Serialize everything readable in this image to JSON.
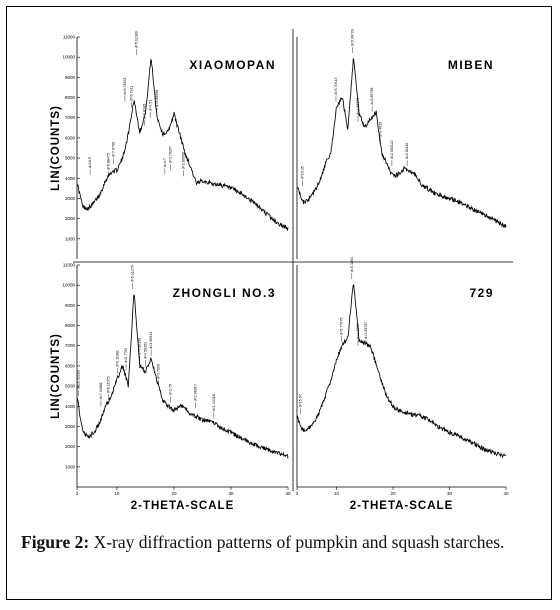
{
  "caption": {
    "label": "Figure 2:",
    "text": "X-ray diffraction patterns of pumpkin and squash starches."
  },
  "chart_data": [
    {
      "type": "line",
      "title": "XIAOMOPAN",
      "ylabel": "LIN(COUNTS)",
      "xlabel": "",
      "xlim": [
        3,
        40
      ],
      "ylim": [
        0,
        11000
      ],
      "yticks": [
        1000,
        2000,
        3000,
        4000,
        5000,
        6000,
        7000,
        8000,
        9000,
        10000,
        11000
      ],
      "xticks": [],
      "x": [
        3,
        4,
        5,
        6,
        7,
        8,
        9,
        10,
        11,
        12,
        13,
        14,
        15,
        16,
        17,
        18,
        19,
        20,
        21,
        22,
        23,
        24,
        25,
        26,
        27,
        28,
        30,
        32,
        34,
        36,
        38,
        40
      ],
      "y": [
        3800,
        2600,
        2500,
        2800,
        3200,
        3900,
        4300,
        4400,
        5000,
        6200,
        7900,
        6300,
        7200,
        10000,
        7100,
        6200,
        6300,
        7200,
        6200,
        5200,
        4500,
        3700,
        3900,
        3800,
        3700,
        3700,
        3500,
        3200,
        2800,
        2300,
        1800,
        1500
      ],
      "peaks": [
        {
          "x": 5.3,
          "y": 4150,
          "label": "d=16.5"
        },
        {
          "x": 8.5,
          "y": 4050,
          "label": "d=9.88475"
        },
        {
          "x": 9.4,
          "y": 4700,
          "label": "d=7.6799"
        },
        {
          "x": 11.4,
          "y": 7800,
          "label": "d=5.78151"
        },
        {
          "x": 12.6,
          "y": 7500,
          "label": "d=5.7311"
        },
        {
          "x": 13.4,
          "y": 10100,
          "label": "d=5.11389"
        },
        {
          "x": 14.8,
          "y": 6600,
          "label": "d=4.8745"
        },
        {
          "x": 15.9,
          "y": 7000,
          "label": "d=4.51"
        },
        {
          "x": 17.0,
          "y": 7200,
          "label": "d=3.89398"
        },
        {
          "x": 18.4,
          "y": 4200,
          "label": "d=3.7"
        },
        {
          "x": 19.4,
          "y": 4400,
          "label": "d=3.76257"
        },
        {
          "x": 21.7,
          "y": 4100,
          "label": "d=2.80095"
        }
      ]
    },
    {
      "type": "line",
      "title": "MIBEN",
      "ylabel": "",
      "xlabel": "",
      "xlim": [
        3,
        40
      ],
      "ylim": [
        0,
        11000
      ],
      "yticks": [],
      "xticks": [],
      "x": [
        3,
        4,
        5,
        6,
        7,
        8,
        9,
        10,
        11,
        12,
        13,
        14,
        15,
        16,
        17,
        18,
        19,
        20,
        21,
        22,
        23,
        24,
        25,
        26,
        27,
        28,
        30,
        32,
        34,
        36,
        38,
        40
      ],
      "y": [
        3600,
        2800,
        2900,
        3300,
        3800,
        4700,
        5300,
        7500,
        8000,
        6400,
        10000,
        7200,
        6500,
        6900,
        7300,
        5300,
        4600,
        4100,
        4200,
        4500,
        4300,
        4200,
        3700,
        3500,
        3300,
        3200,
        3000,
        2800,
        2500,
        2200,
        1900,
        1600
      ],
      "peaks": [
        {
          "x": 4.0,
          "y": 3600,
          "label": "d=15.35"
        },
        {
          "x": 9.9,
          "y": 7800,
          "label": "d=5.70413"
        },
        {
          "x": 12.8,
          "y": 10200,
          "label": "d=5.06729"
        },
        {
          "x": 13.8,
          "y": 6800,
          "label": "d=4.88172"
        },
        {
          "x": 16.3,
          "y": 7300,
          "label": "d=3.89798"
        },
        {
          "x": 17.8,
          "y": 5700,
          "label": "d=3.4919"
        },
        {
          "x": 19.8,
          "y": 4600,
          "label": "d=2.581122"
        },
        {
          "x": 22.5,
          "y": 4600,
          "label": "d=2.81116"
        }
      ]
    },
    {
      "type": "line",
      "title": "ZHONGLI NO.3",
      "ylabel": "LIN(COUNTS)",
      "xlabel": "2-THETA-SCALE",
      "xlim": [
        3,
        40
      ],
      "ylim": [
        0,
        11000
      ],
      "yticks": [
        1000,
        2000,
        3000,
        4000,
        5000,
        6000,
        7000,
        8000,
        9000,
        10000,
        11000
      ],
      "xticks": [
        3,
        10,
        20,
        30,
        40
      ],
      "x": [
        3,
        4,
        5,
        6,
        7,
        8,
        9,
        10,
        11,
        12,
        13,
        14,
        15,
        16,
        17,
        18,
        19,
        20,
        21,
        22,
        23,
        24,
        25,
        26,
        27,
        28,
        30,
        32,
        34,
        36,
        38,
        40
      ],
      "y": [
        4500,
        2700,
        2500,
        2700,
        3200,
        4000,
        4500,
        5300,
        6000,
        5000,
        9700,
        6000,
        5700,
        6400,
        5300,
        4300,
        4000,
        3800,
        4000,
        3900,
        3600,
        3500,
        3300,
        3300,
        3200,
        3000,
        2700,
        2400,
        2100,
        1900,
        1700,
        1500
      ],
      "peaks": [
        {
          "x": 3.3,
          "y": 4500,
          "label": "d=16.92183"
        },
        {
          "x": 7.2,
          "y": 4000,
          "label": "d=7.34881"
        },
        {
          "x": 8.5,
          "y": 4300,
          "label": "d=6.11975"
        },
        {
          "x": 10.1,
          "y": 5600,
          "label": "d=6.11081"
        },
        {
          "x": 11.6,
          "y": 5800,
          "label": "d=5.7753"
        },
        {
          "x": 12.7,
          "y": 9800,
          "label": "d=5.11279"
        },
        {
          "x": 14.0,
          "y": 6200,
          "label": "d=4.86196"
        },
        {
          "x": 15.0,
          "y": 6000,
          "label": "d=4.50252"
        },
        {
          "x": 16.0,
          "y": 6500,
          "label": "d=3.90913"
        },
        {
          "x": 17.3,
          "y": 5000,
          "label": "d=3.7009"
        },
        {
          "x": 19.4,
          "y": 4200,
          "label": "d=2.75"
        },
        {
          "x": 23.8,
          "y": 3900,
          "label": "d=2.08917"
        },
        {
          "x": 27.0,
          "y": 3400,
          "label": "d=1.44418"
        }
      ]
    },
    {
      "type": "line",
      "title": "729",
      "ylabel": "",
      "xlabel": "2-THETA-SCALE",
      "xlim": [
        3,
        40
      ],
      "ylim": [
        0,
        11000
      ],
      "yticks": [],
      "xticks": [
        3,
        10,
        20,
        30,
        40
      ],
      "x": [
        3,
        4,
        5,
        6,
        7,
        8,
        9,
        10,
        11,
        12,
        13,
        14,
        15,
        16,
        17,
        18,
        19,
        20,
        21,
        22,
        23,
        24,
        25,
        26,
        27,
        28,
        30,
        32,
        34,
        36,
        38,
        40
      ],
      "y": [
        3500,
        2800,
        2900,
        3200,
        3700,
        4500,
        5300,
        6300,
        7000,
        7400,
        10200,
        7300,
        7100,
        7000,
        6100,
        5200,
        4400,
        4000,
        3800,
        3700,
        3600,
        3600,
        3500,
        3400,
        3200,
        3000,
        2700,
        2500,
        2200,
        1900,
        1700,
        1500
      ],
      "peaks": [
        {
          "x": 3.6,
          "y": 3600,
          "label": "d=15.57"
        },
        {
          "x": 10.9,
          "y": 7200,
          "label": "d=5.77075"
        },
        {
          "x": 12.7,
          "y": 10300,
          "label": "d=5.1864"
        },
        {
          "x": 13.8,
          "y": 7000,
          "label": "d=4.8963"
        },
        {
          "x": 15.2,
          "y": 7000,
          "label": "d=3.89787"
        }
      ]
    }
  ]
}
